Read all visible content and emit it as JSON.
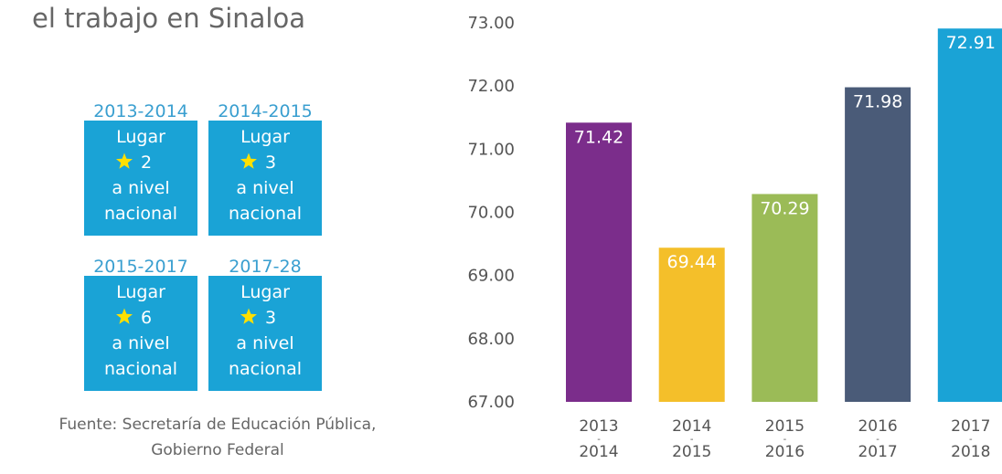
{
  "heading": "el trabajo en Sinaloa",
  "rankings": [
    {
      "period": "2013-2014",
      "lines": [
        "Lugar",
        "2",
        "a nivel",
        "nacional"
      ]
    },
    {
      "period": "2014-2015",
      "lines": [
        "Lugar",
        "3",
        "a nivel",
        "nacional"
      ]
    },
    {
      "period": "2015-2017",
      "lines": [
        "Lugar",
        "6",
        "a nivel",
        "nacional"
      ]
    },
    {
      "period": "2017-28",
      "lines": [
        "Lugar",
        "3",
        "a nivel",
        "nacional"
      ]
    }
  ],
  "source": [
    "Fuente:  Secretaría de Educación Pública,",
    "Gobierno Federal"
  ],
  "chart_data": {
    "type": "bar",
    "categories": [
      "2013-2014",
      "2014-2015",
      "2015-2016",
      "2016-2017",
      "2017-2018"
    ],
    "values": [
      71.42,
      69.44,
      70.29,
      71.98,
      72.91
    ],
    "colors": [
      "#7b2d8b",
      "#f4bf2a",
      "#9bbb57",
      "#4a5b78",
      "#1aa3d6"
    ],
    "ylim": [
      67,
      73
    ],
    "yticks": [
      {
        "value": 67,
        "label": "67.00"
      },
      {
        "value": 68,
        "label": "68.00"
      },
      {
        "value": 69,
        "label": "69.00"
      },
      {
        "value": 70,
        "label": "70.00"
      },
      {
        "value": 71,
        "label": "71.00"
      },
      {
        "value": 72,
        "label": "72.00"
      },
      {
        "value": 73,
        "label": "73.00"
      }
    ]
  }
}
